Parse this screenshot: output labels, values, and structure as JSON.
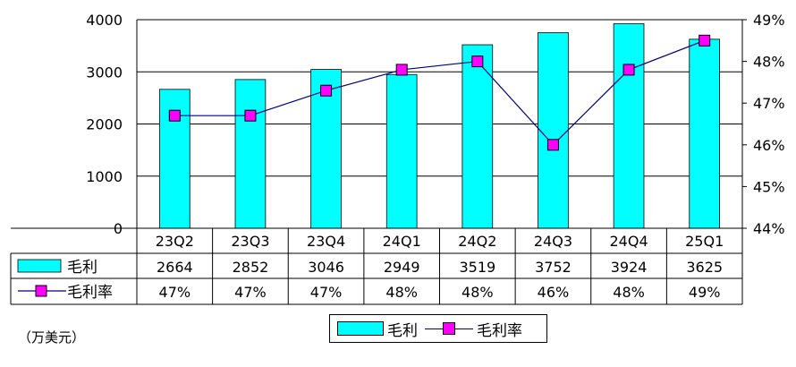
{
  "chart_data": {
    "type": "bar",
    "categories": [
      "23Q2",
      "23Q3",
      "23Q4",
      "24Q1",
      "24Q2",
      "24Q3",
      "24Q4",
      "25Q1"
    ],
    "series": [
      {
        "name": "毛利",
        "type": "bar",
        "axis": "left",
        "values": [
          2664,
          2852,
          3046,
          2949,
          3519,
          3752,
          3924,
          3625
        ],
        "color": "#00ffff"
      },
      {
        "name": "毛利率",
        "type": "line",
        "axis": "right",
        "values": [
          46.7,
          46.7,
          47.3,
          47.8,
          48.0,
          46.0,
          47.8,
          48.5
        ],
        "color": "#000080",
        "marker_color": "#ff00ff"
      }
    ],
    "table": {
      "rows": [
        {
          "label": "毛利",
          "values": [
            "2664",
            "2852",
            "3046",
            "2949",
            "3519",
            "3752",
            "3924",
            "3625"
          ]
        },
        {
          "label": "毛利率",
          "values": [
            "47%",
            "47%",
            "47%",
            "48%",
            "48%",
            "46%",
            "48%",
            "49%"
          ]
        }
      ]
    },
    "left_axis": {
      "ylim": [
        0,
        4000
      ],
      "ticks": [
        "0",
        "1000",
        "2000",
        "3000",
        "4000"
      ]
    },
    "right_axis": {
      "ylim": [
        44,
        49
      ],
      "ticks": [
        "44%",
        "45%",
        "46%",
        "47%",
        "48%",
        "49%"
      ]
    },
    "unit_note": "（万美元）",
    "legend": {
      "position": "bottom",
      "items": [
        "毛利",
        "毛利率"
      ]
    },
    "grid": true
  }
}
